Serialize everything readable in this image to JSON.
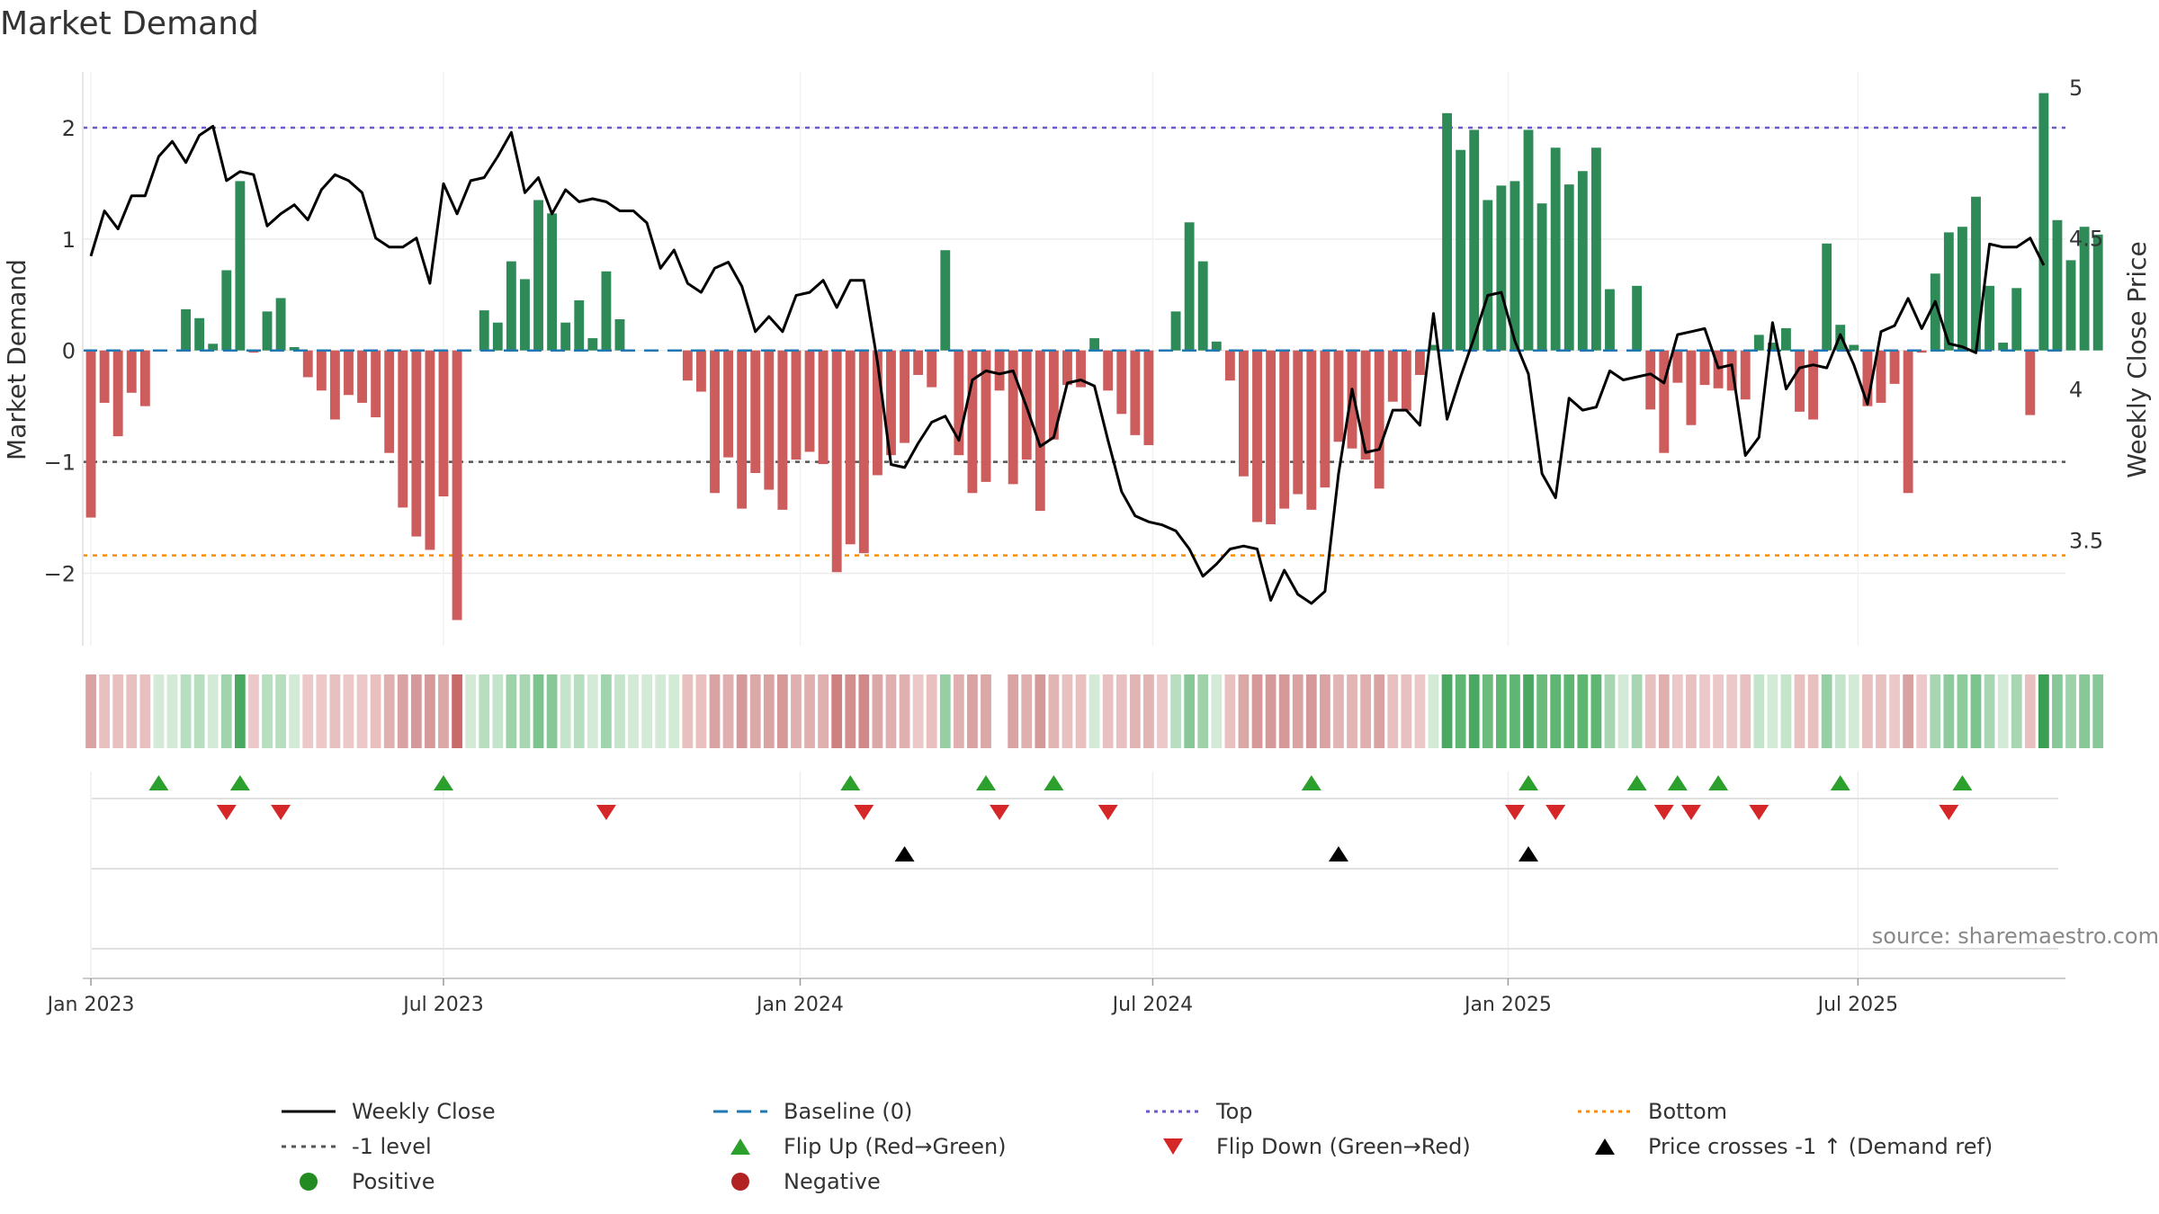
{
  "title": "Market Demand",
  "source_note": "source: sharemaestro.com",
  "colors": {
    "positive": "#2e8b57",
    "negative": "#cd5c5c",
    "close": "#000000",
    "baseline": "#1f77b4",
    "top": "#6a5acd",
    "bottom": "#ff8c00",
    "level": "#555555",
    "flip_up": "#2ca02c",
    "flip_down": "#d62728",
    "cross": "#000000",
    "dot_positive": "#228b22",
    "dot_negative": "#b22222"
  },
  "legend": [
    {
      "key": "close",
      "label": "Weekly Close",
      "kind": "line"
    },
    {
      "key": "baseline",
      "label": "Baseline (0)",
      "kind": "dash"
    },
    {
      "key": "top",
      "label": "Top",
      "kind": "dot"
    },
    {
      "key": "bottom",
      "label": "Bottom",
      "kind": "dot"
    },
    {
      "key": "level",
      "label": "-1 level",
      "kind": "dot"
    },
    {
      "key": "flip_up",
      "label": "Flip Up (Red→Green)",
      "kind": "tri-up"
    },
    {
      "key": "flip_down",
      "label": "Flip Down (Green→Red)",
      "kind": "tri-down"
    },
    {
      "key": "cross",
      "label": "Price crosses -1 ↑ (Demand ref)",
      "kind": "tri-up"
    },
    {
      "key": "dot_positive",
      "label": "Positive",
      "kind": "circle"
    },
    {
      "key": "dot_negative",
      "label": "Negative",
      "kind": "circle"
    }
  ],
  "chart_data": {
    "type": "bar",
    "title": "Market Demand",
    "ylabel_left": "Market Demand",
    "ylabel_right": "Weekly Close Price",
    "ylim_left": [
      -2.65,
      2.5
    ],
    "ylim_right": [
      3.15,
      5.05
    ],
    "yticks_left": [
      {
        "v": 2,
        "label": "2"
      },
      {
        "v": 1,
        "label": "1"
      },
      {
        "v": 0,
        "label": "0"
      },
      {
        "v": -1,
        "label": "−1"
      },
      {
        "v": -2,
        "label": "−2"
      }
    ],
    "yticks_right": [
      {
        "v": 5,
        "label": "5"
      },
      {
        "v": 4.5,
        "label": "4.5"
      },
      {
        "v": 4,
        "label": "4"
      },
      {
        "v": 3.5,
        "label": "3.5"
      }
    ],
    "x_range_weeks": [
      -0.6,
      145.6
    ],
    "xticks": [
      {
        "week": 0,
        "label": "Jan 2023"
      },
      {
        "week": 26,
        "label": "Jul 2023"
      },
      {
        "week": 52.3,
        "label": "Jan 2024"
      },
      {
        "week": 78.3,
        "label": "Jul 2024"
      },
      {
        "week": 104.5,
        "label": "Jan 2025"
      },
      {
        "week": 130.3,
        "label": "Jul 2025"
      }
    ],
    "reference_lines": {
      "top": 2.0,
      "bottom": -1.84,
      "level": -1.0,
      "baseline": 0
    },
    "series": [
      {
        "name": "Market Demand",
        "type": "bar",
        "values": [
          -1.5,
          -0.47,
          -0.77,
          -0.38,
          -0.5,
          0,
          0,
          0.37,
          0.29,
          0.06,
          0.72,
          1.52,
          -0.02,
          0.35,
          0.47,
          0.03,
          -0.24,
          -0.36,
          -0.62,
          -0.4,
          -0.47,
          -0.6,
          -0.92,
          -1.41,
          -1.67,
          -1.79,
          -1.31,
          -2.42,
          0,
          0.36,
          0.25,
          0.8,
          0.64,
          1.35,
          1.23,
          0.25,
          0.45,
          0.11,
          0.71,
          0.28,
          0,
          0,
          0,
          0,
          -0.27,
          -0.37,
          -1.28,
          -0.96,
          -1.42,
          -1.1,
          -1.25,
          -1.43,
          -0.98,
          -0.91,
          -1.02,
          -1.99,
          -1.74,
          -1.82,
          -1.12,
          -0.94,
          -0.83,
          -0.22,
          -0.33,
          0.9,
          -0.94,
          -1.28,
          -1.18,
          -0.36,
          -1.2,
          -0.98,
          -1.44,
          -0.8,
          -0.31,
          -0.33,
          0.11,
          -0.36,
          -0.57,
          -0.76,
          -0.85,
          0,
          0.35,
          1.15,
          0.8,
          0.08,
          -0.27,
          -1.13,
          -1.54,
          -1.56,
          -1.42,
          -1.29,
          -1.43,
          -1.23,
          -0.82,
          -0.88,
          -0.98,
          -1.24,
          -0.46,
          -0.54,
          -0.22,
          0.05,
          2.13,
          1.8,
          1.98,
          1.35,
          1.48,
          1.52,
          1.98,
          1.32,
          1.82,
          1.49,
          1.61,
          1.82,
          0.55,
          0,
          0.58,
          -0.53,
          -0.92,
          -0.29,
          -0.67,
          -0.31,
          -0.34,
          -0.36,
          -0.44,
          0.14,
          0.07,
          0.2,
          -0.55,
          -0.62,
          0.96,
          0.23,
          0.05,
          -0.5,
          -0.47,
          -0.3,
          -1.28,
          -0.02,
          0.69,
          1.06,
          1.11,
          1.38,
          0.58,
          0.07,
          0.56,
          -0.58,
          2.31,
          1.17,
          0.81,
          1.11,
          1.04
        ]
      },
      {
        "name": "Weekly Close",
        "type": "line",
        "axis": "right",
        "values": [
          4.44,
          4.59,
          4.53,
          4.64,
          4.64,
          4.77,
          4.82,
          4.75,
          4.84,
          4.87,
          4.69,
          4.72,
          4.71,
          4.54,
          4.58,
          4.61,
          4.56,
          4.66,
          4.71,
          4.69,
          4.65,
          4.5,
          4.47,
          4.47,
          4.5,
          4.35,
          4.68,
          4.58,
          4.69,
          4.7,
          4.77,
          4.85,
          4.65,
          4.7,
          4.58,
          4.66,
          4.62,
          4.63,
          4.62,
          4.59,
          4.59,
          4.55,
          4.4,
          4.46,
          4.35,
          4.32,
          4.4,
          4.42,
          4.34,
          4.19,
          4.24,
          4.19,
          4.31,
          4.32,
          4.36,
          4.27,
          4.36,
          4.36,
          4.09,
          3.75,
          3.74,
          3.82,
          3.89,
          3.91,
          3.83,
          4.03,
          4.06,
          4.05,
          4.06,
          3.94,
          3.81,
          3.84,
          4.02,
          4.03,
          4.01,
          3.83,
          3.66,
          3.58,
          3.56,
          3.55,
          3.53,
          3.47,
          3.38,
          3.42,
          3.47,
          3.48,
          3.47,
          3.3,
          3.4,
          3.32,
          3.29,
          3.33,
          3.72,
          4.0,
          3.79,
          3.8,
          3.93,
          3.93,
          3.88,
          4.25,
          3.9,
          4.04,
          4.17,
          4.31,
          4.32,
          4.16,
          4.05,
          3.72,
          3.64,
          3.97,
          3.93,
          3.94,
          4.06,
          4.03,
          4.04,
          4.05,
          4.02,
          4.18,
          4.19,
          4.2,
          4.07,
          4.08,
          3.78,
          3.84,
          4.22,
          4.0,
          4.07,
          4.08,
          4.07,
          4.18,
          4.08,
          3.95,
          4.19,
          4.21,
          4.3,
          4.2,
          4.29,
          4.15,
          4.14,
          4.12,
          4.48,
          4.47,
          4.47,
          4.5,
          4.41
        ]
      }
    ],
    "strip_colors": [
      "#d9a3a3",
      "#e8c0c0",
      "#e8c0c0",
      "#e8c0c0",
      "#e8c0c0",
      "#d3ead6",
      "#d3ead6",
      "#b8deC0",
      "#b8dec0",
      "#d3ead6",
      "#a0d4ac",
      "#4aa860",
      "#ecc8c8",
      "#b8dec0",
      "#b8dec0",
      "#d3ead6",
      "#ecc8c8",
      "#ecc8c8",
      "#e8c0c0",
      "#ecc8c8",
      "#ecc8c8",
      "#e8c0c0",
      "#e0b0b0",
      "#d9a3a3",
      "#d59999",
      "#d59999",
      "#dba8a8",
      "#c86a6a",
      "#d3ead6",
      "#b8dec0",
      "#c4e4cb",
      "#9ed2a9",
      "#a8d6b2",
      "#7cc48e",
      "#88c898",
      "#c4e4cb",
      "#b8dec0",
      "#d3ead6",
      "#a0d4ac",
      "#c4e4cb",
      "#d3ead6",
      "#d3ead6",
      "#d3ead6",
      "#d3ead6",
      "#e8c0c0",
      "#e8c0c0",
      "#d9a3a3",
      "#e0b0b0",
      "#d59999",
      "#dba8a8",
      "#d9a3a3",
      "#d59999",
      "#e0b0b0",
      "#e0b0b0",
      "#e0b0b0",
      "#cf8080",
      "#d38e8e",
      "#d18888",
      "#dba8a8",
      "#e0b0b0",
      "#e0b0b0",
      "#ecc8c8",
      "#e8c0c0",
      "#96cfa3",
      "#e0b0b0",
      "#d9a3a3",
      "#dba8a8",
      "#ffffff",
      "#d9a3a3",
      "#e0b0b0",
      "#d59999",
      "#e2b5b5",
      "#e8c0c0",
      "#e8c0c0",
      "#d3ead6",
      "#e8c0c0",
      "#e8c0c0",
      "#e2b5b5",
      "#e2b5b5",
      "#ecc8c8",
      "#b8dec0",
      "#88c898",
      "#9ed2a9",
      "#d3ead6",
      "#e8c0c0",
      "#dba8a8",
      "#d59999",
      "#d59999",
      "#d59999",
      "#d9a3a3",
      "#d59999",
      "#d9a3a3",
      "#e2b5b5",
      "#e2b5b5",
      "#e0b0b0",
      "#d9a3a3",
      "#e8c0c0",
      "#e8c0c0",
      "#ecc8c8",
      "#d3ead6",
      "#4aa860",
      "#5fb572",
      "#4aa860",
      "#6abb7c",
      "#5fb572",
      "#5fb572",
      "#4aa860",
      "#6abb7c",
      "#5fb572",
      "#5fb572",
      "#5fb572",
      "#5fb572",
      "#a8d6b2",
      "#d3ead6",
      "#a8d6b2",
      "#e8c0c0",
      "#e0b0b0",
      "#ecc8c8",
      "#e8c0c0",
      "#ecc8c8",
      "#ecc8c8",
      "#ecc8c8",
      "#e8c0c0",
      "#c4e4cb",
      "#d3ead6",
      "#c4e4cb",
      "#e8c0c0",
      "#e8c0c0",
      "#96cfa3",
      "#c4e4cb",
      "#d3ead6",
      "#e8c0c0",
      "#e8c0c0",
      "#ecc8c8",
      "#d9a3a3",
      "#ecc8c8",
      "#a8d6b2",
      "#8ccb9c",
      "#8ccb9c",
      "#7cc48e",
      "#a8d6b2",
      "#d3ead6",
      "#a8d6b2",
      "#e8c0c0",
      "#3c9e55",
      "#88c898",
      "#9ed2a9",
      "#88c898",
      "#88c898"
    ],
    "flip_up_weeks": [
      5,
      11,
      26,
      56,
      66,
      71,
      90,
      106,
      114,
      117,
      120,
      129,
      138
    ],
    "flip_down_weeks": [
      10,
      14,
      38,
      57,
      67,
      75,
      105,
      108,
      116,
      118,
      123,
      137
    ],
    "cross_up_weeks": [
      60,
      92,
      106
    ]
  }
}
